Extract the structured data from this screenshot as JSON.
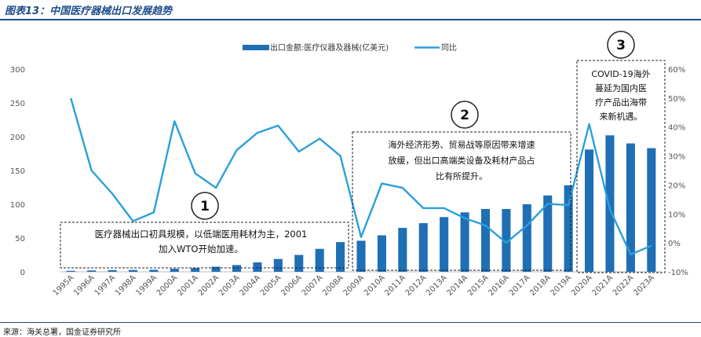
{
  "title": "图表13：中国医疗器械出口发展趋势",
  "source": "来源：海关总署，国金证券研究所",
  "colors": {
    "bar": "#1f6fb5",
    "line": "#2aa0dc",
    "frame": "#1f4e8c"
  },
  "chart_data": {
    "type": "bar+line",
    "categories": [
      "1995A",
      "1996A",
      "1997A",
      "1998A",
      "1999A",
      "2000A",
      "2001A",
      "2002A",
      "2003A",
      "2004A",
      "2005A",
      "2006A",
      "2007A",
      "2008A",
      "2009A",
      "2010A",
      "2011A",
      "2012A",
      "2013A",
      "2014A",
      "2015A",
      "2016A",
      "2017A",
      "2018A",
      "2019A",
      "2020A",
      "2021A",
      "2022A",
      "2023A"
    ],
    "series": [
      {
        "name": "出口金额:医疗仪器及器械(亿美元)",
        "type": "bar",
        "axis": "left",
        "values": [
          1.5,
          2,
          2.5,
          2.7,
          3,
          4.5,
          5.5,
          7.5,
          10,
          14,
          19,
          25,
          34,
          44,
          46,
          54,
          65,
          72,
          81,
          88,
          93,
          93,
          100,
          113,
          128,
          181,
          202,
          190,
          183
        ]
      },
      {
        "name": "同比",
        "type": "line",
        "axis": "right",
        "values": [
          50,
          25,
          17,
          7.5,
          10.5,
          42,
          24,
          19,
          32,
          38,
          40.5,
          31.5,
          36,
          30,
          2,
          20.5,
          19,
          12,
          12,
          8.5,
          6,
          0,
          6,
          13.5,
          13,
          41,
          11.5,
          -4,
          -1
        ]
      }
    ],
    "yleft": {
      "min": 0,
      "max": 300,
      "ticks": [
        "0",
        "50",
        "100",
        "150",
        "200",
        "250",
        "300"
      ]
    },
    "yright": {
      "min": -10,
      "max": 60,
      "ticks": [
        "-10%",
        "0%",
        "10%",
        "20%",
        "30%",
        "40%",
        "50%",
        "60%"
      ]
    },
    "legend_position": "top-center",
    "annotations": [
      {
        "number": "1",
        "lines": [
          "医疗器械出口初具规模，以低端医用耗材为主，2001",
          "加入WTO开始加速。"
        ]
      },
      {
        "number": "2",
        "lines": [
          "海外经济形势、贸易战等原因带来增速",
          "放缓，但出口高端类设备及耗材产品占",
          "比有所提升。"
        ]
      },
      {
        "number": "3",
        "lines": [
          "COVID-19海外",
          "蔓延为国内医",
          "疗产品出海带",
          "来新机遇。"
        ]
      }
    ]
  }
}
